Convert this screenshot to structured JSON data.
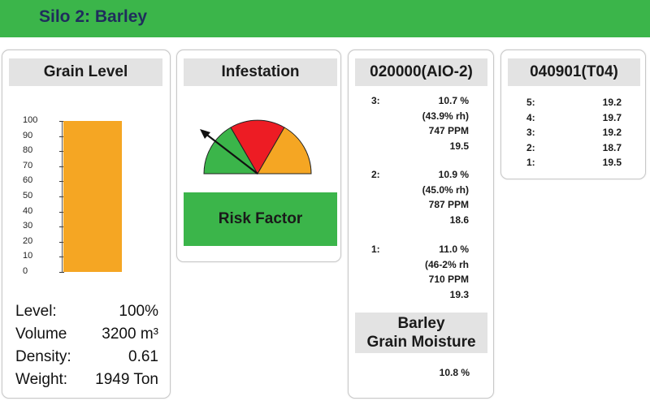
{
  "header": {
    "title": "Silo 2: Barley"
  },
  "grain_level": {
    "title": "Grain Level",
    "axis_ticks": [
      "100",
      "90",
      "80",
      "70",
      "60",
      "50",
      "40",
      "30",
      "20",
      "10",
      "0"
    ],
    "fill_percent": 100,
    "bar_color": "#f5a623",
    "stats": [
      {
        "label": "Level:",
        "value": "100%"
      },
      {
        "label": "Volume",
        "value": "3200 m³"
      },
      {
        "label": "Density:",
        "value": "0.61"
      },
      {
        "label": "Weight:",
        "value": "1949 Ton"
      }
    ]
  },
  "infestation": {
    "title": "Infestation",
    "gauge_colors": {
      "low": "#3bb54a",
      "mid": "#ed1c24",
      "high": "#f5a623"
    },
    "needle_level": "low",
    "risk_label": "Risk Factor",
    "risk_color": "#3bb54a"
  },
  "sensor_aio2": {
    "title": "020000(AIO-2)",
    "readings": [
      {
        "index": "3:",
        "lines": [
          "10.7 %",
          "(43.9% rh)",
          "747 PPM",
          "19.5"
        ]
      },
      {
        "index": "2:",
        "lines": [
          "10.9 %",
          "(45.0% rh)",
          "787 PPM",
          "18.6"
        ]
      },
      {
        "index": "1:",
        "lines": [
          "11.0 %",
          "(46-2% rh",
          "710 PPM",
          "19.3"
        ]
      }
    ],
    "moisture_title_line1": "Barley",
    "moisture_title_line2": "Grain Moisture",
    "moisture_value": "10.8 %"
  },
  "sensor_t04": {
    "title": "040901(T04)",
    "readings": [
      {
        "index": "5:",
        "value": "19.2"
      },
      {
        "index": "4:",
        "value": "19.7"
      },
      {
        "index": "3:",
        "value": "19.2"
      },
      {
        "index": "2:",
        "value": "18.7"
      },
      {
        "index": "1:",
        "value": "19.5"
      }
    ]
  }
}
